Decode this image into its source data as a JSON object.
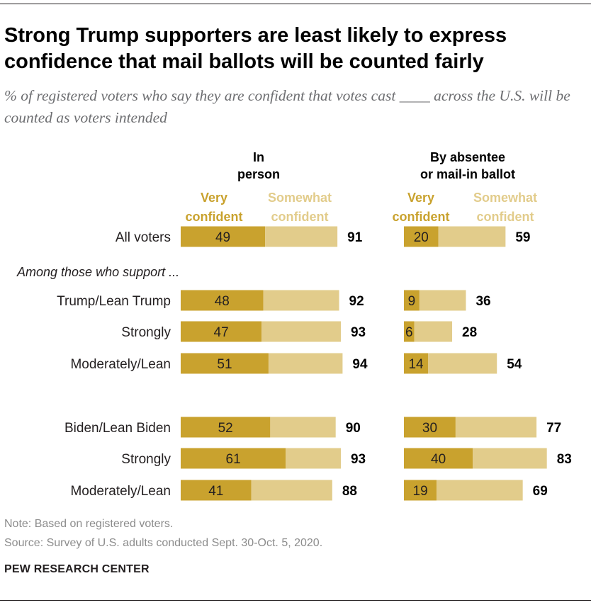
{
  "title": "Strong Trump supporters are least likely to express confidence that mail ballots will be counted fairly",
  "subtitle": "% of registered voters who say they are confident that votes cast ____ across the U.S. will be counted as voters intended",
  "note": "Note: Based on registered voters.",
  "source": "Source: Survey of U.S. adults conducted Sept. 30-Oct. 5, 2020.",
  "brand": "PEW RESEARCH CENTER",
  "section_label": "Among those who support ...",
  "colors": {
    "very_confident": "#c9a22e",
    "somewhat_confident": "#e2cc8b"
  },
  "chart_data": {
    "type": "bar",
    "orientation": "horizontal",
    "stacked": true,
    "categories": [
      "All voters",
      "Trump/Lean Trump",
      "Strongly",
      "Moderately/Lean",
      "Biden/Lean Biden",
      "Strongly",
      "Moderately/Lean"
    ],
    "panels": [
      {
        "title": [
          "In",
          "person"
        ],
        "legend": {
          "very": [
            "Very",
            "confident"
          ],
          "somewhat": [
            "Somewhat",
            "confident"
          ]
        },
        "series": [
          {
            "name": "Very confident",
            "values": [
              49,
              48,
              47,
              51,
              52,
              61,
              41
            ]
          },
          {
            "name": "Somewhat confident",
            "values": [
              42,
              44,
              46,
              43,
              38,
              32,
              47
            ]
          }
        ],
        "totals": [
          91,
          92,
          93,
          94,
          90,
          93,
          88
        ]
      },
      {
        "title": [
          "By absentee",
          "or mail-in ballot"
        ],
        "legend": {
          "very": [
            "Very",
            "confident"
          ],
          "somewhat": [
            "Somewhat",
            "confident"
          ]
        },
        "series": [
          {
            "name": "Very confident",
            "values": [
              20,
              9,
              6,
              14,
              30,
              40,
              19
            ]
          },
          {
            "name": "Somewhat confident",
            "values": [
              39,
              27,
              22,
              40,
              47,
              43,
              50
            ]
          }
        ],
        "totals": [
          59,
          36,
          28,
          54,
          77,
          83,
          69
        ]
      }
    ],
    "xlim": [
      0,
      100
    ],
    "grid": false
  }
}
